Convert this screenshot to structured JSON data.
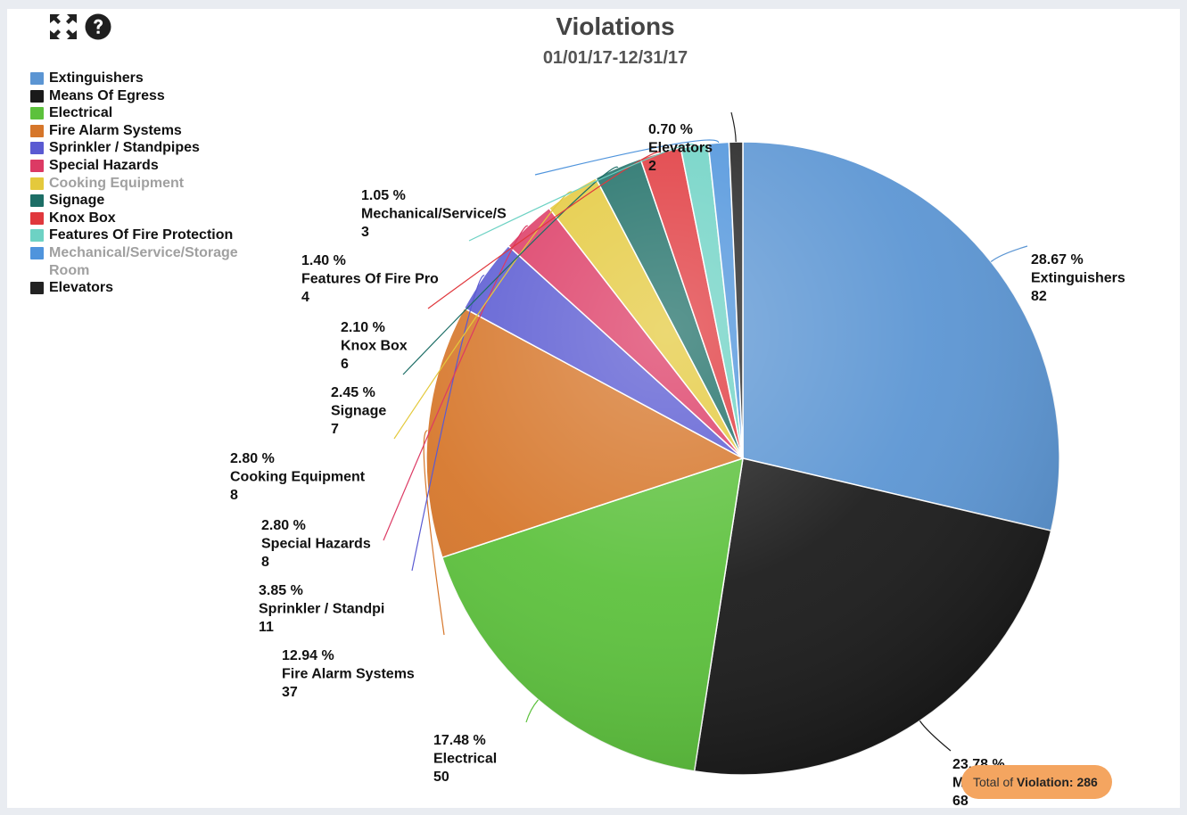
{
  "toolbar": {
    "fullscreen_icon": "expand-arrows-icon",
    "help_icon": "question-circle-icon"
  },
  "total": {
    "prefix": "Total of",
    "label": "Violation:",
    "value": "286"
  },
  "chart_data": {
    "type": "pie",
    "title": "Violations",
    "subtitle": "01/01/17-12/31/17",
    "legend_position": "left",
    "slices": [
      {
        "name": "Extinguishers",
        "label": "Extinguishers",
        "value": 82,
        "percent": "28.67 %",
        "color": "#5b95d3",
        "legend_muted": false
      },
      {
        "name": "Means Of Egress",
        "label": "Means Of Egress",
        "value": 68,
        "percent": "23.78 %",
        "color": "#1a1a1a",
        "legend_muted": false
      },
      {
        "name": "Electrical",
        "label": "Electrical",
        "value": 50,
        "percent": "17.48 %",
        "color": "#5cc13c",
        "legend_muted": false
      },
      {
        "name": "Fire Alarm Systems",
        "label": "Fire Alarm Systems",
        "value": 37,
        "percent": "12.94 %",
        "color": "#d6762a",
        "legend_muted": false
      },
      {
        "name": "Sprinkler / Standpipes",
        "label": "Sprinkler / Standpi",
        "value": 11,
        "percent": "3.85 %",
        "color": "#5a5ad2",
        "legend_muted": false
      },
      {
        "name": "Special Hazards",
        "label": "Special Hazards",
        "value": 8,
        "percent": "2.80 %",
        "color": "#dc3a64",
        "legend_muted": false
      },
      {
        "name": "Cooking Equipment",
        "label": "Cooking Equipment",
        "value": 8,
        "percent": "2.80 %",
        "color": "#e4c93c",
        "legend_muted": true
      },
      {
        "name": "Signage",
        "label": "Signage",
        "value": 7,
        "percent": "2.45 %",
        "color": "#1d6e66",
        "legend_muted": false
      },
      {
        "name": "Knox Box",
        "label": "Knox Box",
        "value": 6,
        "percent": "2.10 %",
        "color": "#e0383d",
        "legend_muted": false
      },
      {
        "name": "Features Of Fire Protection",
        "label": "Features Of Fire Pro",
        "value": 4,
        "percent": "1.40 %",
        "color": "#6dd2c4",
        "legend_muted": false
      },
      {
        "name": "Mechanical/Service/Storage Room",
        "label": "Mechanical/Service/S",
        "value": 3,
        "percent": "1.05 %",
        "color": "#4f94dc",
        "legend_muted": true
      },
      {
        "name": "Elevators",
        "label": "Elevators",
        "value": 2,
        "percent": "0.70 %",
        "color": "#222222",
        "legend_muted": false
      }
    ]
  }
}
